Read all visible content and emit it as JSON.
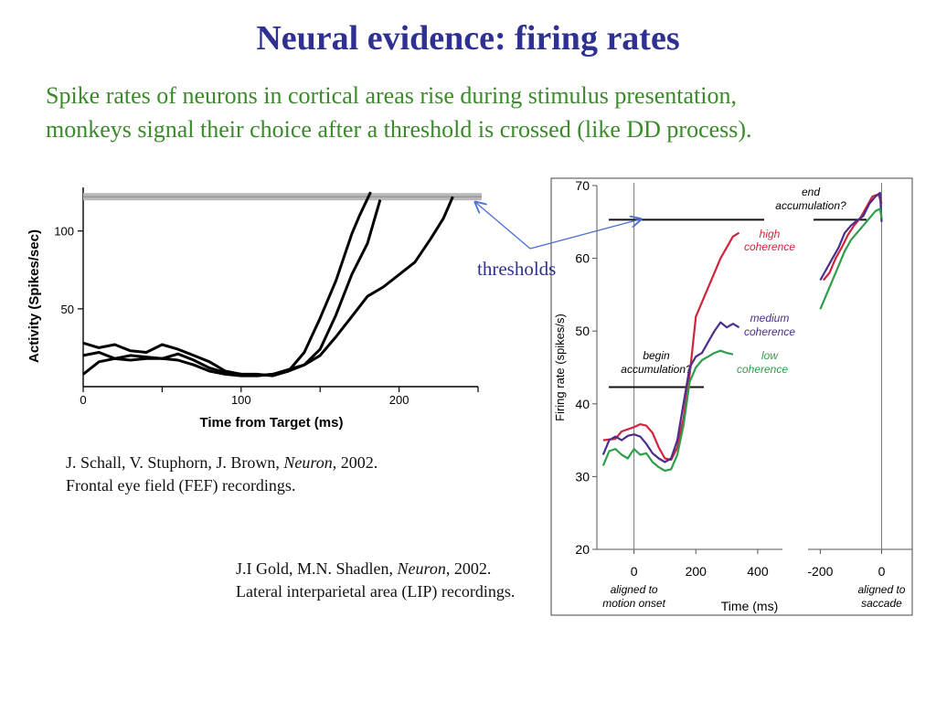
{
  "slide": {
    "title": "Neural evidence: firing rates",
    "subtitle_line1": "Spike rates of neurons in cortical areas rise during stimulus presentation,",
    "subtitle_line2": "monkeys signal their choice after a threshold is crossed (like DD process).",
    "annotation_label": "thresholds",
    "citation1": {
      "authors": "J. Schall, V. Stuphorn, J. Brown, ",
      "journal": "Neuron",
      "year": ", 2002.",
      "line2": "Frontal eye field (FEF) recordings."
    },
    "citation2": {
      "authors": "J.I Gold, M.N. Shadlen, ",
      "journal": "Neuron",
      "year": ", 2002.",
      "line2": "Lateral interparietal area (LIP) recordings."
    }
  },
  "chart_data": [
    {
      "type": "line",
      "xlabel": "Time from Target (ms)",
      "ylabel": "Activity (Spikes/sec)",
      "xlim": [
        0,
        250
      ],
      "ylim": [
        0,
        128
      ],
      "x_ticks": [
        0,
        100,
        200
      ],
      "x_minor_ticks": [
        50,
        150,
        250
      ],
      "y_ticks": [
        50,
        100
      ],
      "threshold": 122,
      "series": [
        {
          "values": [
            [
              0,
              28
            ],
            [
              10,
              25
            ],
            [
              20,
              27
            ],
            [
              30,
              23
            ],
            [
              40,
              22
            ],
            [
              50,
              27
            ],
            [
              60,
              24
            ],
            [
              70,
              20
            ],
            [
              80,
              16
            ],
            [
              90,
              10
            ],
            [
              100,
              8
            ],
            [
              110,
              8
            ],
            [
              120,
              7
            ],
            [
              130,
              10
            ],
            [
              140,
              22
            ],
            [
              150,
              44
            ],
            [
              160,
              68
            ],
            [
              170,
              98
            ],
            [
              175,
              110
            ],
            [
              182,
              125
            ]
          ]
        },
        {
          "values": [
            [
              0,
              20
            ],
            [
              10,
              22
            ],
            [
              20,
              18
            ],
            [
              30,
              20
            ],
            [
              40,
              19
            ],
            [
              50,
              18
            ],
            [
              60,
              21
            ],
            [
              70,
              17
            ],
            [
              80,
              12
            ],
            [
              90,
              9
            ],
            [
              100,
              8
            ],
            [
              110,
              7
            ],
            [
              120,
              8
            ],
            [
              130,
              11
            ],
            [
              140,
              14
            ],
            [
              150,
              24
            ],
            [
              160,
              46
            ],
            [
              170,
              72
            ],
            [
              180,
              92
            ],
            [
              188,
              120
            ]
          ]
        },
        {
          "values": [
            [
              0,
              8
            ],
            [
              10,
              16
            ],
            [
              20,
              18
            ],
            [
              30,
              17
            ],
            [
              40,
              18
            ],
            [
              50,
              18
            ],
            [
              60,
              17
            ],
            [
              70,
              14
            ],
            [
              80,
              10
            ],
            [
              90,
              8
            ],
            [
              100,
              7
            ],
            [
              110,
              7
            ],
            [
              120,
              8
            ],
            [
              130,
              10
            ],
            [
              140,
              14
            ],
            [
              150,
              20
            ],
            [
              160,
              32
            ],
            [
              170,
              45
            ],
            [
              180,
              58
            ],
            [
              190,
              64
            ],
            [
              200,
              72
            ],
            [
              210,
              80
            ],
            [
              220,
              95
            ],
            [
              228,
              108
            ],
            [
              234,
              122
            ]
          ]
        }
      ]
    },
    {
      "type": "line",
      "ylabel": "Firing rate (spikes/s)",
      "xlabel": "Time (ms)",
      "ylim": [
        20,
        70
      ],
      "y_ticks": [
        20,
        30,
        40,
        50,
        60,
        70
      ],
      "panels": [
        {
          "label_line1": "aligned to",
          "label_line2": "motion onset",
          "xlim": [
            -120,
            480
          ],
          "x_ticks": [
            0,
            200,
            400
          ],
          "x_tick_labels": [
            "0",
            "200",
            "400"
          ],
          "annotation_line1": "begin",
          "annotation_line2": "accumulation?",
          "threshold": 42.3
        },
        {
          "label_line1": "aligned to",
          "label_line2": "saccade",
          "xlim": [
            -240,
            100
          ],
          "x_ticks": [
            -200,
            0
          ],
          "x_tick_labels": [
            "-200",
            "0"
          ],
          "annotation_line1": "end",
          "annotation_line2": "accumulation?",
          "threshold": 65.3
        }
      ],
      "series": [
        {
          "name_line1": "high",
          "name_line2": "coherence",
          "color": "#d0243c",
          "motion": [
            [
              -100,
              35
            ],
            [
              -60,
              35.2
            ],
            [
              -40,
              36.2
            ],
            [
              -20,
              36.5
            ],
            [
              0,
              36.8
            ],
            [
              20,
              37.2
            ],
            [
              40,
              37.0
            ],
            [
              60,
              36.0
            ],
            [
              80,
              34.0
            ],
            [
              100,
              32.5
            ],
            [
              120,
              32.3
            ],
            [
              140,
              34.0
            ],
            [
              160,
              38.0
            ],
            [
              180,
              44.0
            ],
            [
              200,
              52.0
            ],
            [
              240,
              56.0
            ],
            [
              280,
              60.0
            ],
            [
              320,
              63.0
            ],
            [
              340,
              63.5
            ]
          ],
          "saccade": [
            [
              -190,
              57
            ],
            [
              -170,
              58
            ],
            [
              -150,
              60
            ],
            [
              -130,
              61.5
            ],
            [
              -110,
              63.2
            ],
            [
              -90,
              64.5
            ],
            [
              -70,
              65.5
            ],
            [
              -50,
              67
            ],
            [
              -30,
              68.5
            ],
            [
              -10,
              68.8
            ],
            [
              0,
              67.5
            ]
          ]
        },
        {
          "name_line1": "medium",
          "name_line2": "coherence",
          "color": "#4b2d8c",
          "motion": [
            [
              -100,
              33
            ],
            [
              -80,
              35
            ],
            [
              -60,
              35.5
            ],
            [
              -40,
              35
            ],
            [
              -20,
              35.6
            ],
            [
              0,
              35.8
            ],
            [
              20,
              35.5
            ],
            [
              40,
              34.5
            ],
            [
              60,
              33.2
            ],
            [
              80,
              32.5
            ],
            [
              100,
              32.0
            ],
            [
              120,
              32.5
            ],
            [
              140,
              35.0
            ],
            [
              160,
              40.0
            ],
            [
              180,
              45.0
            ],
            [
              200,
              46.5
            ],
            [
              220,
              47.0
            ],
            [
              240,
              48.5
            ],
            [
              260,
              50.0
            ],
            [
              280,
              51.2
            ],
            [
              300,
              50.5
            ],
            [
              320,
              51.0
            ],
            [
              340,
              50.5
            ]
          ],
          "saccade": [
            [
              -200,
              57
            ],
            [
              -180,
              58.5
            ],
            [
              -160,
              60
            ],
            [
              -140,
              61.5
            ],
            [
              -120,
              63.5
            ],
            [
              -100,
              64.5
            ],
            [
              -80,
              65.2
            ],
            [
              -60,
              65.8
            ],
            [
              -40,
              67.5
            ],
            [
              -20,
              68.5
            ],
            [
              -5,
              69.0
            ],
            [
              0,
              65.0
            ]
          ]
        },
        {
          "name_line1": "low",
          "name_line2": "coherence",
          "color": "#2e9e4a",
          "motion": [
            [
              -100,
              31.5
            ],
            [
              -80,
              33.5
            ],
            [
              -60,
              33.8
            ],
            [
              -40,
              33.0
            ],
            [
              -20,
              32.5
            ],
            [
              0,
              33.8
            ],
            [
              20,
              33.0
            ],
            [
              40,
              33.2
            ],
            [
              60,
              32.0
            ],
            [
              80,
              31.3
            ],
            [
              100,
              30.8
            ],
            [
              120,
              31.0
            ],
            [
              140,
              33.0
            ],
            [
              160,
              37.0
            ],
            [
              180,
              43.0
            ],
            [
              200,
              45.0
            ],
            [
              220,
              46.0
            ],
            [
              240,
              46.5
            ],
            [
              260,
              47.0
            ],
            [
              280,
              47.3
            ],
            [
              300,
              47.0
            ],
            [
              320,
              46.8
            ]
          ],
          "saccade": [
            [
              -200,
              53
            ],
            [
              -180,
              55
            ],
            [
              -160,
              57
            ],
            [
              -140,
              59
            ],
            [
              -120,
              61
            ],
            [
              -100,
              62.5
            ],
            [
              -80,
              63.5
            ],
            [
              -60,
              64.5
            ],
            [
              -40,
              65.5
            ],
            [
              -20,
              66.5
            ],
            [
              -5,
              66.8
            ],
            [
              0,
              65.5
            ]
          ]
        }
      ]
    }
  ]
}
